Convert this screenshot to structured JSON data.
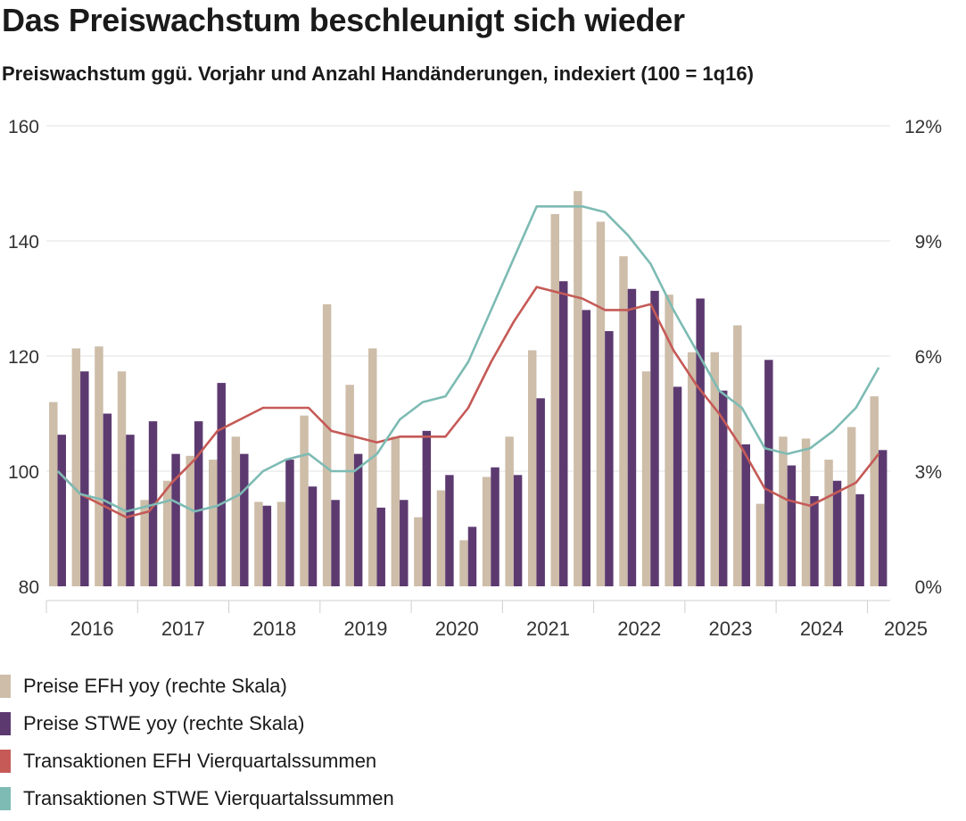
{
  "header": {
    "title": "Das Preiswachstum beschleunigt sich wieder",
    "subtitle": "Preiswachstum ggü. Vorjahr und Anzahl Handänderungen, indexiert (100 = 1q16)"
  },
  "colors": {
    "efh_bar": "#cdbda9",
    "stwe_bar": "#5c3a70",
    "efh_line": "#c55a57",
    "stwe_line": "#7dbbb4",
    "grid": "#e3e3e3"
  },
  "chart_data": {
    "type": "bar",
    "quarters": [
      "1q16",
      "2q16",
      "3q16",
      "4q16",
      "1q17",
      "2q17",
      "3q17",
      "4q17",
      "1q18",
      "2q18",
      "3q18",
      "4q18",
      "1q19",
      "2q19",
      "3q19",
      "4q19",
      "1q20",
      "2q20",
      "3q20",
      "4q20",
      "1q21",
      "2q21",
      "3q21",
      "4q21",
      "1q22",
      "2q22",
      "3q22",
      "4q22",
      "1q23",
      "2q23",
      "3q23",
      "4q23",
      "1q24",
      "2q24",
      "3q24",
      "4q24",
      "1q25"
    ],
    "x_tick_labels": [
      "2016",
      "2017",
      "2018",
      "2019",
      "2020",
      "2021",
      "2022",
      "2023",
      "2024",
      "2025"
    ],
    "left_axis": {
      "min": 80,
      "max": 160,
      "ticks": [
        "80",
        "100",
        "120",
        "140",
        "160"
      ]
    },
    "right_axis": {
      "min": 0,
      "max": 12,
      "ticks": [
        "0%",
        "3%",
        "6%",
        "9%",
        "12%"
      ]
    },
    "grid": "horizontal",
    "legend_position": "bottom",
    "series": [
      {
        "name": "Preise EFH yoy (rechte Skala)",
        "type": "bar",
        "axis": "right",
        "values": [
          4.8,
          6.2,
          6.25,
          5.6,
          2.25,
          2.75,
          3.4,
          3.3,
          3.9,
          2.2,
          2.2,
          4.45,
          7.35,
          5.25,
          6.2,
          3.9,
          1.8,
          2.5,
          1.2,
          2.85,
          3.9,
          6.15,
          9.7,
          10.3,
          9.5,
          8.6,
          5.6,
          7.6,
          6.1,
          6.1,
          6.8,
          2.15,
          3.9,
          3.85,
          3.3,
          4.15,
          4.95
        ]
      },
      {
        "name": "Preise STWE yoy (rechte Skala)",
        "type": "bar",
        "axis": "right",
        "values": [
          3.95,
          5.6,
          4.5,
          3.95,
          4.3,
          3.45,
          4.3,
          5.3,
          3.45,
          2.1,
          3.3,
          2.6,
          2.25,
          3.45,
          2.05,
          2.25,
          4.05,
          2.9,
          1.55,
          3.1,
          2.9,
          4.9,
          7.95,
          7.2,
          6.65,
          7.75,
          7.7,
          5.2,
          7.5,
          5.1,
          3.7,
          5.9,
          3.15,
          2.35,
          2.75,
          2.4,
          3.55
        ]
      },
      {
        "name": "Transaktionen EFH Vierquartalssummen",
        "type": "line",
        "axis": "left",
        "values": [
          100,
          96,
          94,
          92,
          93,
          98,
          102,
          107,
          109,
          111,
          111,
          111,
          107,
          106,
          105,
          106,
          106,
          106,
          111,
          119,
          126,
          132,
          131,
          130,
          128,
          128,
          129,
          121,
          115,
          110,
          104,
          97,
          95,
          94,
          96,
          98,
          103
        ]
      },
      {
        "name": "Transaktionen STWE Vierquartalssummen",
        "type": "line",
        "axis": "left",
        "values": [
          100,
          96,
          95,
          93,
          94,
          95,
          93,
          94,
          96,
          100,
          102,
          103,
          100,
          100,
          103,
          109,
          112,
          113,
          119,
          128,
          137,
          146,
          146,
          146,
          145,
          141,
          136,
          128,
          121,
          114,
          111,
          104,
          103,
          104,
          107,
          111,
          118
        ]
      }
    ]
  }
}
